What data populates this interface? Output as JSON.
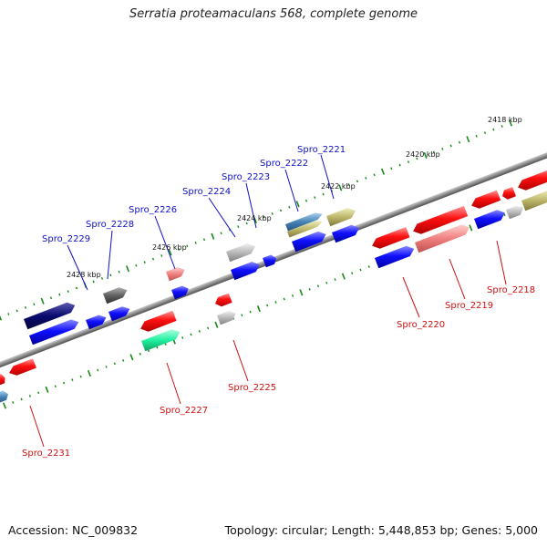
{
  "title": "Serratia proteamaculans 568, complete genome",
  "footer": {
    "accession": "Accession: NC_009832",
    "summary": "Topology: circular; Length: 5,448,853 bp; Genes: 5,000"
  },
  "kbp_labels": [
    "2418 kbp",
    "2420 kbp",
    "2422 kbp",
    "2424 kbp",
    "2426 kbp",
    "2428 kbp"
  ],
  "genes_top": [
    "Spro_2221",
    "Spro_2222",
    "Spro_2223",
    "Spro_2224",
    "Spro_2226",
    "Spro_2228",
    "Spro_2229"
  ],
  "genes_bottom": [
    "Spro_2218",
    "Spro_2219",
    "Spro_2220",
    "Spro_2225",
    "Spro_2227",
    "Spro_2231"
  ],
  "colors": {
    "top_label": "#1010c8",
    "bottom_label": "#d01010",
    "tick": "#138a13",
    "backbone": "#8a8a8a"
  }
}
